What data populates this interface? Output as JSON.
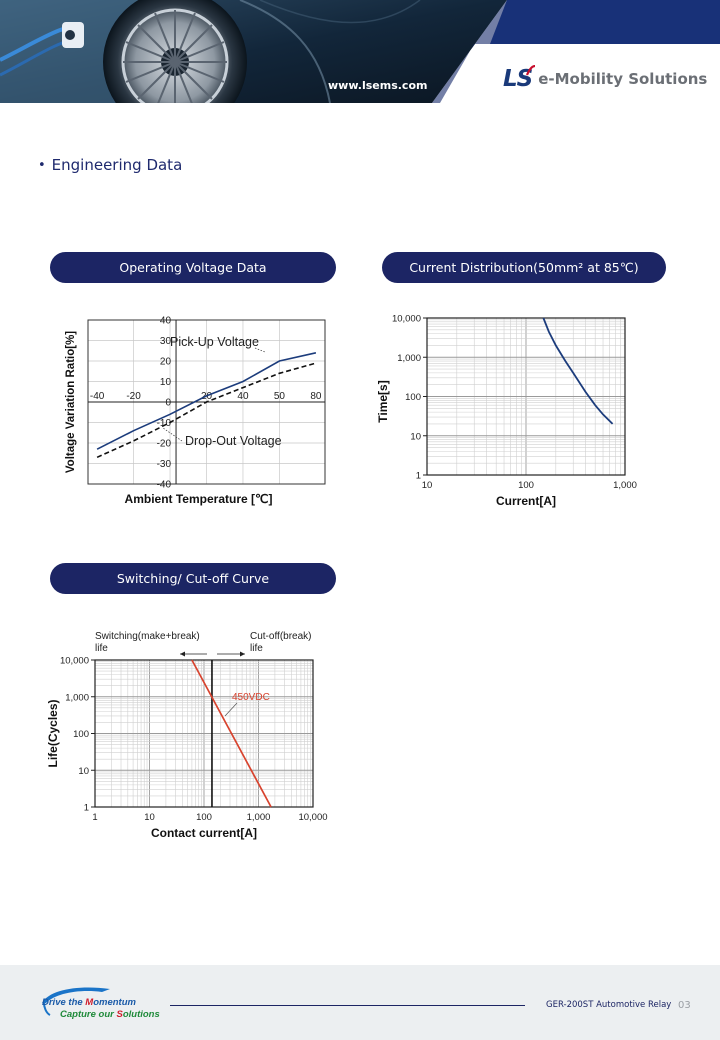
{
  "header": {
    "url": "www.lsems.com",
    "brand_mark_ls": "LS",
    "brand_name": "e-Mobility Solutions",
    "colors": {
      "navy": "#1c2564",
      "brand_blue": "#1a3a7a",
      "brand_red": "#c8102e"
    }
  },
  "section": {
    "bullet": "•",
    "title": "Engineering Data"
  },
  "panels": {
    "operating_voltage": "Operating Voltage Data",
    "current_distribution": "Current Distribution(50mm² at 85℃)",
    "switching_cutoff": "Switching/ Cut-off Curve"
  },
  "chart_data": [
    {
      "type": "line",
      "xlabel": "Ambient Temperature [℃]",
      "ylabel": "Voltage Variation Ratio[%]",
      "x_ticks": [
        "-40",
        "-20",
        "20",
        "40",
        "50",
        "80"
      ],
      "y_ticks": [
        "40",
        "30",
        "20",
        "10",
        "0",
        "-10",
        "-20",
        "-30",
        "-40"
      ],
      "ylim": [
        -40,
        40
      ],
      "grid": true,
      "annotations": [
        "Pick-Up Voltage",
        "Drop-Out Voltage"
      ],
      "series": [
        {
          "name": "Pick-Up Voltage",
          "x": [
            -40,
            -20,
            0,
            20,
            40,
            60,
            80
          ],
          "y": [
            -23,
            -14,
            -6,
            3,
            10,
            20,
            24
          ],
          "style": "solid",
          "color": "#1c3c7c"
        },
        {
          "name": "Drop-Out Voltage",
          "x": [
            -40,
            -20,
            0,
            20,
            40,
            60,
            80
          ],
          "y": [
            -27,
            -19,
            -10,
            0,
            7,
            14,
            19
          ],
          "style": "dashed",
          "color": "#111111"
        }
      ]
    },
    {
      "type": "line",
      "xscale": "log",
      "yscale": "log",
      "xlabel": "Current[A]",
      "ylabel": "Time[s]",
      "x_ticks": [
        "10",
        "100",
        "1,000"
      ],
      "y_ticks": [
        "10,000",
        "1,000",
        "100",
        "10",
        "1"
      ],
      "xlim": [
        10,
        1000
      ],
      "ylim": [
        1,
        10000
      ],
      "grid": true,
      "series": [
        {
          "x": [
            150,
            170,
            200,
            250,
            300,
            400,
            500,
            600,
            750
          ],
          "y": [
            10000,
            4500,
            2000,
            800,
            400,
            130,
            60,
            35,
            20
          ],
          "color": "#1c3c7c"
        }
      ]
    },
    {
      "type": "line",
      "xscale": "log",
      "yscale": "log",
      "xlabel": "Contact current[A]",
      "ylabel": "Life(Cycles)",
      "x_ticks": [
        "1",
        "10",
        "100",
        "1,000",
        "10,000"
      ],
      "y_ticks": [
        "10,000",
        "1,000",
        "100",
        "10",
        "1"
      ],
      "xlim": [
        1,
        10000
      ],
      "ylim": [
        1,
        10000
      ],
      "grid": true,
      "annotations": [
        "Switching(make+break)",
        "life",
        "Cut-off(break)",
        "life",
        "450VDC"
      ],
      "series": [
        {
          "name": "450VDC",
          "x": [
            60,
            1700
          ],
          "y": [
            10000,
            1
          ],
          "color": "#d8432e"
        }
      ],
      "boundary_x": 140
    }
  ],
  "footer": {
    "slogan_line1_a": "Drive the ",
    "slogan_line1_b": "M",
    "slogan_line1_c": "omentum",
    "slogan_line2_a": "Capture our ",
    "slogan_line2_b": "S",
    "slogan_line2_c": "olutions",
    "model": "GER-200ST Automotive Relay",
    "page": "03"
  }
}
